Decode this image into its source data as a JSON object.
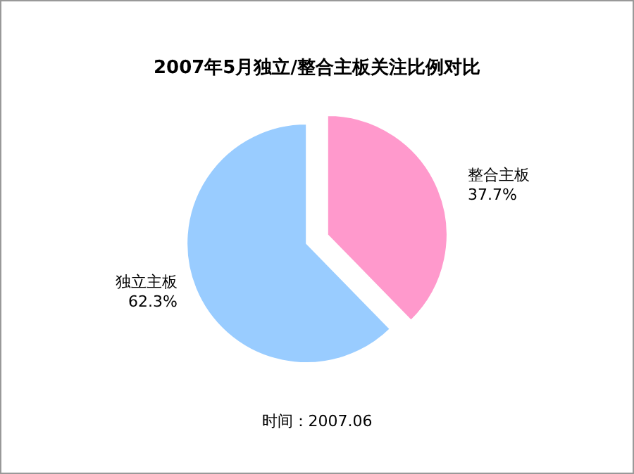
{
  "chart_data": {
    "type": "pie",
    "title": "2007年5月独立/整合主板关注比例对比",
    "categories": [
      "独立主板",
      "整合主板"
    ],
    "values": [
      62.3,
      37.7
    ],
    "colors": [
      "#99ccff",
      "#ff99cc"
    ],
    "value_labels": [
      "62.3%",
      "37.7%"
    ],
    "annotations": [
      "时间：2007.06"
    ]
  }
}
